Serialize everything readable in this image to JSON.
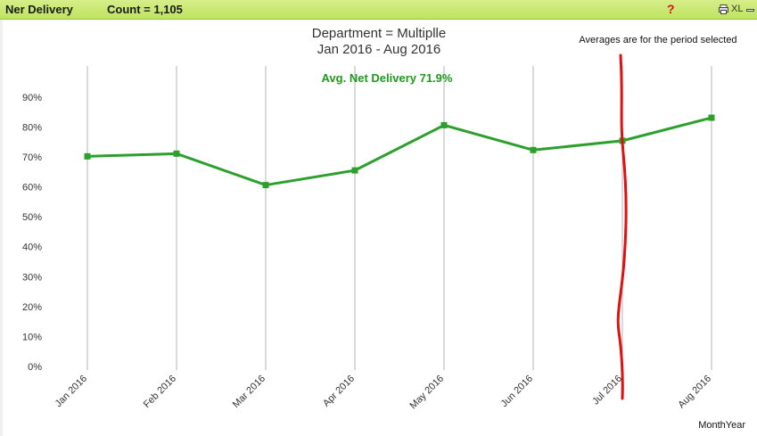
{
  "caption": {
    "title": "Ner Delivery",
    "count_label": "Count = 1,105",
    "help_icon_text": "?",
    "print_icon": "printer-icon",
    "xl_label": "XL",
    "minimize_icon": "minimize-icon",
    "background_color": "#c8e878"
  },
  "chart_data": {
    "type": "line",
    "title": "Department = Multiplle",
    "subtitle": "Jan 2016  -  Aug 2016",
    "annotation": "Avg. Net Delivery  71.9%",
    "note": "Averages are for the period selected",
    "xlabel": "MonthYear",
    "ylabel": "",
    "categories": [
      "Jan 2016",
      "Feb 2016",
      "Mar 2016",
      "Apr 2016",
      "May 2016",
      "Jun 2016",
      "Jul 2016",
      "Aug 2016"
    ],
    "series": [
      {
        "name": "Net Delivery",
        "values": [
          70.2,
          71.1,
          60.6,
          65.5,
          80.6,
          72.3,
          75.4,
          83.1
        ],
        "color": "#2ca02c"
      }
    ],
    "ylim": [
      0,
      90
    ],
    "yticks": [
      0,
      10,
      20,
      30,
      40,
      50,
      60,
      70,
      80,
      90
    ],
    "ytick_labels": [
      "0%",
      "10%",
      "20%",
      "30%",
      "40%",
      "50%",
      "60%",
      "70%",
      "80%",
      "90%"
    ],
    "grid": "vertical",
    "marker_color": "#e01010"
  }
}
